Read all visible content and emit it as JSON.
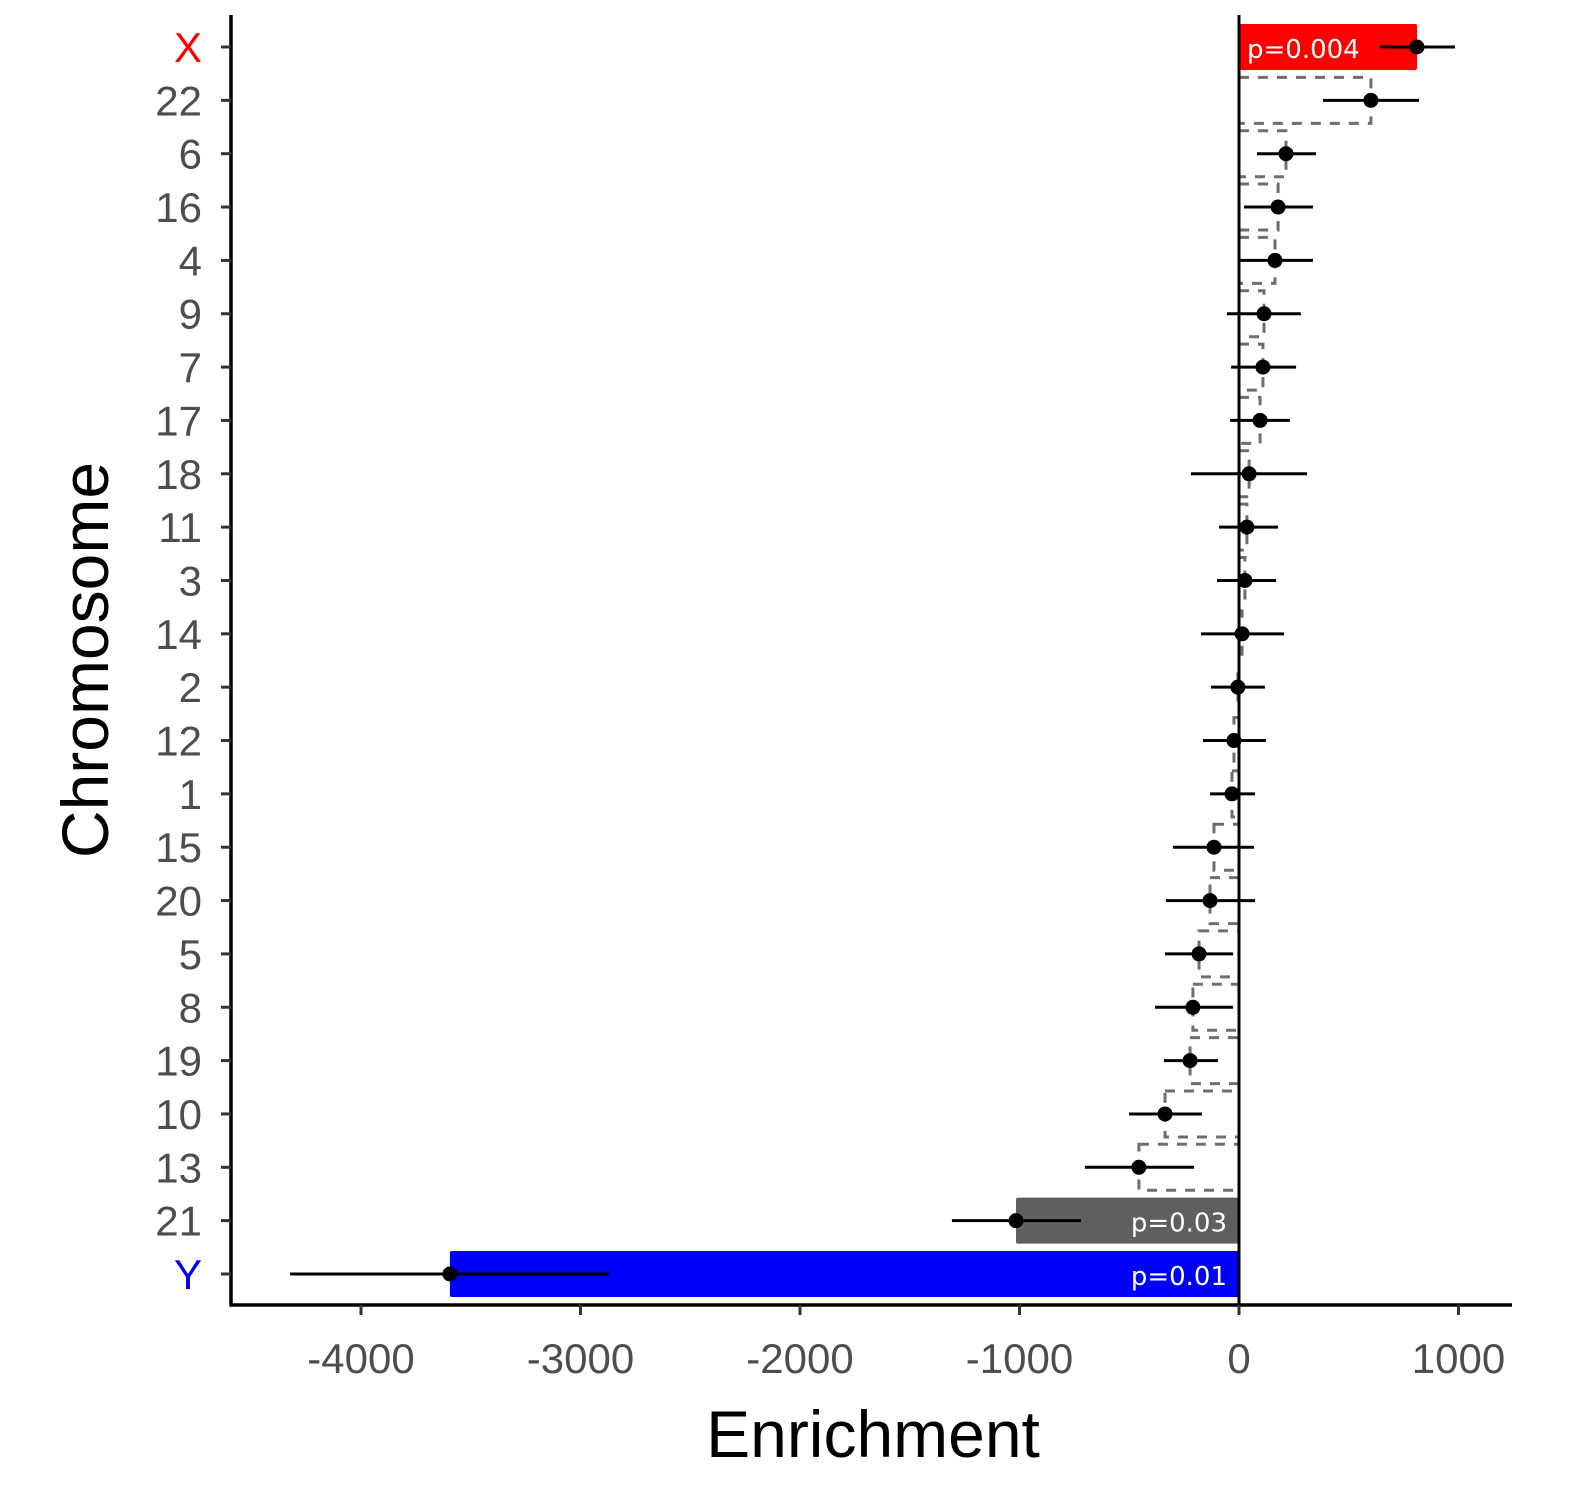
{
  "chart_data": {
    "type": "bar",
    "title": "",
    "xlabel": "Enrichment",
    "ylabel": "Chromosome",
    "xlim": [
      -4600,
      1240
    ],
    "xticks": [
      -4000,
      -3000,
      -2000,
      -1000,
      0,
      1000
    ],
    "xtick_labels": [
      "-4000",
      "-3000",
      "-2000",
      "-1000",
      "0",
      "1000"
    ],
    "grid": false,
    "categories": [
      "X",
      "22",
      "6",
      "16",
      "4",
      "9",
      "7",
      "17",
      "18",
      "11",
      "3",
      "14",
      "2",
      "12",
      "1",
      "15",
      "20",
      "5",
      "8",
      "19",
      "10",
      "13",
      "21",
      "Y"
    ],
    "values": [
      811,
      601,
      214,
      178,
      164,
      114,
      109,
      96,
      46,
      36,
      27,
      14,
      -5,
      -23,
      -32,
      -114,
      -132,
      -182,
      -210,
      -223,
      -337,
      -456,
      -1016,
      -3595
    ],
    "ci_low": [
      642,
      383,
      82,
      23,
      5,
      -55,
      -36,
      -41,
      -219,
      -91,
      -100,
      -173,
      -128,
      -164,
      -132,
      -301,
      -333,
      -337,
      -383,
      -342,
      -501,
      -702,
      -1308,
      -4323
    ],
    "ci_high": [
      984,
      820,
      351,
      337,
      337,
      282,
      260,
      232,
      310,
      178,
      169,
      205,
      118,
      123,
      73,
      68,
      73,
      -27,
      -27,
      -96,
      -169,
      -205,
      -720,
      -2870
    ],
    "highlights": [
      {
        "category": "X",
        "label": "p=0.004",
        "color": "#ff0000"
      },
      {
        "category": "21",
        "label": "p=0.03",
        "color": "#5f5f5f"
      },
      {
        "category": "Y",
        "label": "p=0.01",
        "color": "#0000ff"
      }
    ],
    "label_colors": {
      "X": "#ff0000",
      "Y": "#0000ff",
      "default": "#4d4d4d"
    },
    "dashed_bar_color": "#6e6e6e"
  }
}
